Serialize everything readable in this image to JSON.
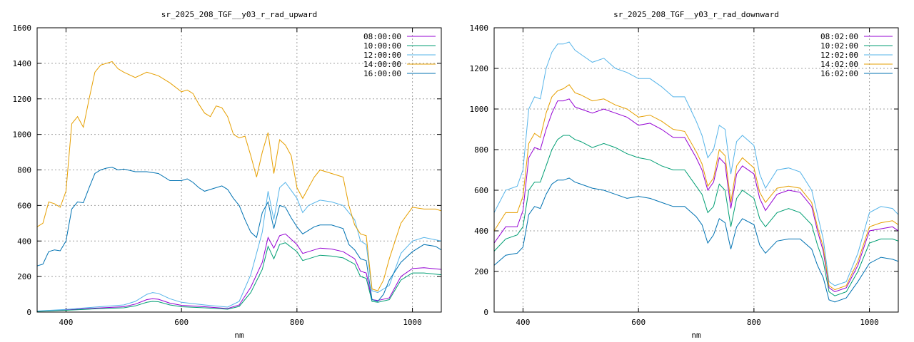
{
  "chart_data": [
    {
      "type": "line",
      "title": "sr_2025_208_TGF__y03_r_rad_upward",
      "xlabel": "nm",
      "ylabel": "",
      "xlim": [
        350,
        1050
      ],
      "ylim": [
        0,
        1600
      ],
      "xticks": [
        400,
        600,
        800,
        1000
      ],
      "yticks": [
        0,
        200,
        400,
        600,
        800,
        1000,
        1200,
        1400,
        1600
      ],
      "grid": true,
      "legend_position": "top-right",
      "series": [
        {
          "name": "08:00:00",
          "color": "#9400d3",
          "x": [
            350,
            400,
            450,
            500,
            520,
            540,
            550,
            560,
            580,
            600,
            640,
            680,
            700,
            720,
            740,
            750,
            760,
            770,
            780,
            800,
            810,
            820,
            840,
            860,
            880,
            900,
            910,
            920,
            930,
            940,
            960,
            980,
            1000,
            1020,
            1050
          ],
          "y": [
            5,
            12,
            22,
            30,
            45,
            70,
            75,
            72,
            50,
            38,
            30,
            20,
            40,
            140,
            280,
            420,
            360,
            430,
            440,
            380,
            330,
            340,
            360,
            355,
            340,
            300,
            230,
            220,
            70,
            65,
            80,
            200,
            245,
            250,
            240
          ]
        },
        {
          "name": "10:00:00",
          "color": "#009e73",
          "x": [
            350,
            400,
            450,
            500,
            520,
            540,
            550,
            560,
            580,
            600,
            640,
            680,
            700,
            720,
            740,
            750,
            760,
            770,
            780,
            800,
            810,
            820,
            840,
            860,
            880,
            900,
            910,
            920,
            930,
            940,
            960,
            980,
            1000,
            1020,
            1050
          ],
          "y": [
            4,
            10,
            18,
            24,
            35,
            55,
            60,
            58,
            40,
            30,
            24,
            16,
            32,
            110,
            240,
            370,
            300,
            380,
            390,
            340,
            290,
            300,
            320,
            315,
            305,
            270,
            200,
            190,
            60,
            55,
            70,
            180,
            220,
            220,
            210
          ]
        },
        {
          "name": "12:00:00",
          "color": "#56b4e9",
          "x": [
            350,
            400,
            450,
            500,
            520,
            540,
            550,
            560,
            580,
            600,
            640,
            680,
            700,
            720,
            740,
            750,
            760,
            770,
            780,
            800,
            810,
            820,
            840,
            860,
            880,
            900,
            910,
            920,
            930,
            940,
            960,
            980,
            1000,
            1020,
            1050
          ],
          "y": [
            6,
            15,
            28,
            40,
            60,
            100,
            110,
            105,
            75,
            55,
            40,
            28,
            60,
            210,
            450,
            680,
            520,
            700,
            730,
            640,
            560,
            600,
            630,
            620,
            600,
            520,
            400,
            380,
            120,
            110,
            150,
            330,
            400,
            420,
            400
          ]
        },
        {
          "name": "14:00:00",
          "color": "#e69f00",
          "x": [
            350,
            360,
            370,
            380,
            390,
            400,
            410,
            420,
            430,
            440,
            450,
            460,
            470,
            480,
            490,
            500,
            520,
            540,
            560,
            580,
            600,
            610,
            620,
            630,
            640,
            650,
            660,
            670,
            680,
            690,
            700,
            710,
            720,
            730,
            740,
            750,
            760,
            770,
            780,
            790,
            800,
            810,
            820,
            830,
            840,
            860,
            880,
            890,
            900,
            910,
            920,
            930,
            940,
            950,
            960,
            980,
            1000,
            1020,
            1040,
            1050
          ],
          "y": [
            480,
            500,
            620,
            610,
            590,
            680,
            1060,
            1100,
            1040,
            1200,
            1350,
            1390,
            1400,
            1410,
            1370,
            1350,
            1320,
            1350,
            1330,
            1290,
            1240,
            1250,
            1230,
            1170,
            1120,
            1100,
            1160,
            1150,
            1100,
            1000,
            980,
            990,
            880,
            760,
            900,
            1010,
            780,
            970,
            940,
            880,
            700,
            640,
            700,
            760,
            800,
            780,
            760,
            600,
            490,
            440,
            430,
            130,
            120,
            180,
            300,
            500,
            590,
            580,
            580,
            570
          ]
        },
        {
          "name": "16:00:00",
          "color": "#0072b2",
          "x": [
            350,
            360,
            370,
            380,
            390,
            400,
            410,
            420,
            430,
            440,
            450,
            460,
            470,
            480,
            490,
            500,
            520,
            540,
            560,
            580,
            600,
            610,
            620,
            630,
            640,
            650,
            660,
            670,
            680,
            690,
            700,
            710,
            720,
            730,
            740,
            750,
            760,
            770,
            780,
            790,
            800,
            810,
            820,
            830,
            840,
            860,
            880,
            890,
            900,
            910,
            920,
            930,
            940,
            950,
            960,
            980,
            1000,
            1020,
            1040,
            1050
          ],
          "y": [
            260,
            270,
            340,
            350,
            345,
            400,
            580,
            620,
            615,
            700,
            780,
            800,
            810,
            815,
            800,
            805,
            790,
            790,
            780,
            740,
            740,
            750,
            730,
            700,
            680,
            690,
            700,
            710,
            690,
            640,
            600,
            520,
            450,
            420,
            560,
            620,
            470,
            600,
            590,
            530,
            480,
            440,
            460,
            480,
            490,
            490,
            470,
            380,
            350,
            300,
            290,
            70,
            60,
            100,
            180,
            280,
            340,
            380,
            370,
            350
          ]
        }
      ]
    },
    {
      "type": "line",
      "title": "sr_2025_208_TGF__y03_r_rad_downward",
      "xlabel": "nm",
      "ylabel": "",
      "xlim": [
        350,
        1050
      ],
      "ylim": [
        0,
        1400
      ],
      "xticks": [
        400,
        600,
        800,
        1000
      ],
      "yticks": [
        0,
        200,
        400,
        600,
        800,
        1000,
        1200,
        1400
      ],
      "grid": true,
      "legend_position": "top-right",
      "series": [
        {
          "name": "08:02:00",
          "color": "#9400d3",
          "x": [
            350,
            370,
            390,
            400,
            410,
            420,
            430,
            440,
            450,
            460,
            470,
            480,
            490,
            500,
            520,
            540,
            560,
            580,
            600,
            620,
            640,
            660,
            680,
            700,
            710,
            720,
            730,
            740,
            750,
            760,
            770,
            780,
            800,
            810,
            820,
            840,
            860,
            880,
            900,
            910,
            920,
            930,
            940,
            960,
            980,
            1000,
            1020,
            1040,
            1050
          ],
          "y": [
            340,
            420,
            420,
            500,
            760,
            810,
            800,
            900,
            980,
            1040,
            1040,
            1050,
            1010,
            1000,
            980,
            1000,
            980,
            960,
            920,
            930,
            900,
            860,
            860,
            760,
            700,
            600,
            640,
            760,
            730,
            510,
            680,
            720,
            680,
            560,
            500,
            580,
            600,
            590,
            520,
            400,
            300,
            120,
            100,
            120,
            230,
            400,
            410,
            420,
            400
          ]
        },
        {
          "name": "10:02:00",
          "color": "#009e73",
          "x": [
            350,
            370,
            390,
            400,
            410,
            420,
            430,
            440,
            450,
            460,
            470,
            480,
            490,
            500,
            520,
            540,
            560,
            580,
            600,
            620,
            640,
            660,
            680,
            700,
            710,
            720,
            730,
            740,
            750,
            760,
            770,
            780,
            800,
            810,
            820,
            840,
            860,
            880,
            900,
            910,
            920,
            930,
            940,
            960,
            980,
            1000,
            1020,
            1040,
            1050
          ],
          "y": [
            300,
            360,
            380,
            420,
            600,
            640,
            640,
            720,
            800,
            850,
            870,
            870,
            850,
            840,
            810,
            830,
            810,
            780,
            760,
            750,
            720,
            700,
            700,
            620,
            580,
            490,
            520,
            630,
            600,
            420,
            560,
            600,
            560,
            460,
            420,
            490,
            510,
            490,
            430,
            330,
            250,
            100,
            80,
            100,
            200,
            340,
            360,
            360,
            350
          ]
        },
        {
          "name": "12:02:00",
          "color": "#56b4e9",
          "x": [
            350,
            370,
            390,
            400,
            410,
            420,
            430,
            440,
            450,
            460,
            470,
            480,
            490,
            500,
            520,
            540,
            560,
            580,
            600,
            620,
            640,
            660,
            680,
            700,
            710,
            720,
            730,
            740,
            750,
            760,
            770,
            780,
            800,
            810,
            820,
            840,
            860,
            880,
            900,
            910,
            920,
            930,
            940,
            960,
            980,
            1000,
            1020,
            1040,
            1050
          ],
          "y": [
            490,
            600,
            620,
            700,
            1000,
            1060,
            1050,
            1200,
            1280,
            1320,
            1320,
            1330,
            1290,
            1270,
            1230,
            1250,
            1200,
            1180,
            1150,
            1150,
            1110,
            1060,
            1060,
            940,
            870,
            760,
            800,
            920,
            900,
            680,
            840,
            870,
            820,
            680,
            610,
            700,
            710,
            690,
            600,
            480,
            360,
            150,
            130,
            150,
            290,
            490,
            520,
            510,
            480
          ]
        },
        {
          "name": "14:02:00",
          "color": "#e69f00",
          "x": [
            350,
            370,
            390,
            400,
            410,
            420,
            430,
            440,
            450,
            460,
            470,
            480,
            490,
            500,
            520,
            540,
            560,
            580,
            600,
            620,
            640,
            660,
            680,
            700,
            710,
            720,
            730,
            740,
            750,
            760,
            770,
            780,
            800,
            810,
            820,
            840,
            860,
            880,
            900,
            910,
            920,
            930,
            940,
            960,
            980,
            1000,
            1020,
            1040,
            1050
          ],
          "y": [
            400,
            490,
            490,
            570,
            830,
            880,
            860,
            980,
            1060,
            1090,
            1100,
            1120,
            1080,
            1070,
            1040,
            1050,
            1020,
            1000,
            960,
            970,
            940,
            900,
            890,
            790,
            730,
            620,
            660,
            800,
            770,
            540,
            720,
            760,
            710,
            590,
            540,
            610,
            620,
            610,
            540,
            420,
            320,
            130,
            110,
            130,
            250,
            420,
            440,
            450,
            430
          ]
        },
        {
          "name": "16:02:00",
          "color": "#0072b2",
          "x": [
            350,
            370,
            390,
            400,
            410,
            420,
            430,
            440,
            450,
            460,
            470,
            480,
            490,
            500,
            520,
            540,
            560,
            580,
            600,
            620,
            640,
            660,
            680,
            700,
            710,
            720,
            730,
            740,
            750,
            760,
            770,
            780,
            800,
            810,
            820,
            840,
            860,
            880,
            900,
            910,
            920,
            930,
            940,
            960,
            980,
            1000,
            1020,
            1040,
            1050
          ],
          "y": [
            230,
            280,
            290,
            320,
            480,
            520,
            510,
            580,
            630,
            650,
            650,
            660,
            640,
            630,
            610,
            600,
            580,
            560,
            570,
            560,
            540,
            520,
            520,
            470,
            430,
            340,
            380,
            460,
            440,
            310,
            420,
            460,
            430,
            330,
            290,
            350,
            360,
            360,
            310,
            230,
            170,
            60,
            50,
            70,
            150,
            240,
            270,
            260,
            250
          ]
        }
      ]
    }
  ]
}
